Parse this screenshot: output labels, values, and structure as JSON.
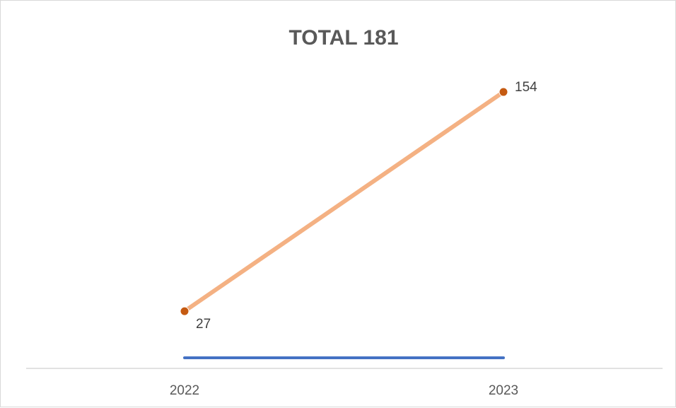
{
  "chart_data": {
    "type": "line",
    "title": "TOTAL 181",
    "categories": [
      "2022",
      "2023"
    ],
    "series": [
      {
        "values": [
          27,
          154
        ],
        "color": "#f4b183",
        "marker_color": "#c55a11",
        "data_labels": true
      },
      {
        "values": [
          0,
          0
        ],
        "color": "#4472c4"
      }
    ],
    "ylim": [
      0,
      170
    ],
    "grid": false,
    "legend": "none"
  }
}
